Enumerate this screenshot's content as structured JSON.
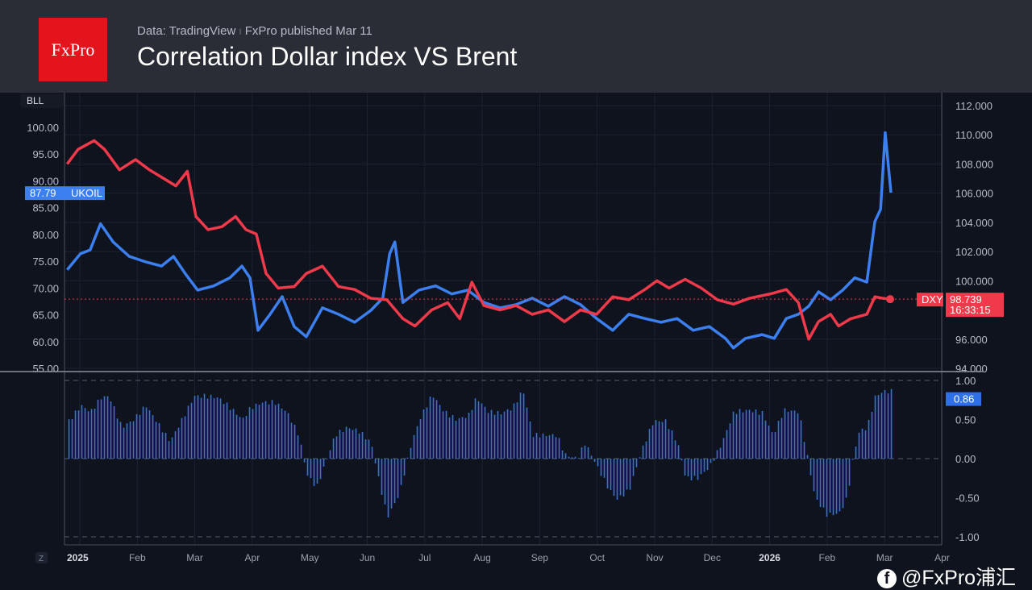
{
  "header": {
    "logo": "FxPro",
    "source": "Data: TradingView",
    "sep": "I",
    "published": "FxPro published Mar 11",
    "title": "Correlation Dollar index VS Brent"
  },
  "watermark": "@FxPro浦汇",
  "chart_data": {
    "type": "line",
    "title": "Correlation Dollar index VS Brent",
    "x_unit": "months since Jan 1 2025",
    "x_ticks": [
      "2025",
      "Feb",
      "Mar",
      "Apr",
      "May",
      "Jun",
      "Jul",
      "Aug",
      "Sep",
      "Oct",
      "Nov",
      "Dec",
      "2026",
      "Feb",
      "Mar",
      "Apr"
    ],
    "left_axis": {
      "label": "BLL",
      "ticks": [
        "100.00",
        "95.00",
        "90.00",
        "85.00",
        "80.00",
        "75.00",
        "70.00",
        "65.00",
        "60.00",
        "55.00"
      ],
      "range": [
        55,
        100
      ]
    },
    "right_axis": {
      "ticks": [
        "112.000",
        "110.000",
        "108.000",
        "106.000",
        "104.000",
        "102.000",
        "100.000",
        "96.000",
        "94.000"
      ],
      "range": [
        94,
        112
      ]
    },
    "series": [
      {
        "name": "UKOIL",
        "axis": "left",
        "color": "#3b7ff0",
        "last_label": "87.79",
        "points": [
          [
            -0.22,
            73.4
          ],
          [
            0.01,
            76.4
          ],
          [
            0.18,
            77.1
          ],
          [
            0.36,
            82.0
          ],
          [
            0.58,
            78.6
          ],
          [
            0.86,
            75.9
          ],
          [
            1.14,
            74.9
          ],
          [
            1.42,
            74.1
          ],
          [
            1.63,
            75.9
          ],
          [
            1.84,
            72.6
          ],
          [
            2.05,
            69.6
          ],
          [
            2.33,
            70.4
          ],
          [
            2.61,
            71.9
          ],
          [
            2.82,
            74.1
          ],
          [
            2.96,
            71.9
          ],
          [
            3.1,
            62.1
          ],
          [
            3.31,
            65.1
          ],
          [
            3.52,
            68.4
          ],
          [
            3.73,
            62.8
          ],
          [
            3.94,
            60.9
          ],
          [
            4.22,
            66.3
          ],
          [
            4.5,
            65.1
          ],
          [
            4.78,
            63.6
          ],
          [
            5.06,
            65.8
          ],
          [
            5.27,
            68.1
          ],
          [
            5.39,
            76.4
          ],
          [
            5.48,
            78.6
          ],
          [
            5.62,
            67.3
          ],
          [
            5.9,
            69.6
          ],
          [
            6.19,
            70.4
          ],
          [
            6.47,
            68.9
          ],
          [
            6.75,
            69.6
          ],
          [
            7.03,
            67.3
          ],
          [
            7.31,
            66.3
          ],
          [
            7.59,
            66.9
          ],
          [
            7.87,
            68.1
          ],
          [
            8.15,
            66.6
          ],
          [
            8.43,
            68.4
          ],
          [
            8.71,
            66.9
          ],
          [
            8.99,
            64.3
          ],
          [
            9.27,
            62.1
          ],
          [
            9.55,
            65.1
          ],
          [
            9.83,
            64.3
          ],
          [
            10.11,
            63.6
          ],
          [
            10.39,
            64.3
          ],
          [
            10.67,
            62.1
          ],
          [
            10.95,
            62.8
          ],
          [
            11.23,
            60.6
          ],
          [
            11.37,
            58.8
          ],
          [
            11.58,
            60.6
          ],
          [
            11.87,
            61.3
          ],
          [
            12.08,
            60.6
          ],
          [
            12.29,
            64.3
          ],
          [
            12.5,
            65.1
          ],
          [
            12.68,
            66.6
          ],
          [
            12.85,
            69.3
          ],
          [
            13.06,
            67.8
          ],
          [
            13.27,
            69.6
          ],
          [
            13.48,
            71.9
          ],
          [
            13.69,
            71.1
          ],
          [
            13.83,
            82.4
          ],
          [
            13.93,
            84.7
          ],
          [
            14.01,
            99.0
          ],
          [
            14.11,
            87.8
          ]
        ]
      },
      {
        "name": "DXY",
        "axis": "right",
        "color": "#f0394a",
        "last_label": "98.739",
        "last_time": "16:33:15",
        "points": [
          [
            -0.22,
            108.0
          ],
          [
            -0.03,
            109.0
          ],
          [
            0.25,
            109.6
          ],
          [
            0.43,
            109.0
          ],
          [
            0.69,
            107.6
          ],
          [
            0.97,
            108.3
          ],
          [
            1.21,
            107.6
          ],
          [
            1.42,
            107.1
          ],
          [
            1.67,
            106.5
          ],
          [
            1.87,
            107.5
          ],
          [
            2.02,
            104.4
          ],
          [
            2.23,
            103.5
          ],
          [
            2.47,
            103.7
          ],
          [
            2.71,
            104.4
          ],
          [
            2.89,
            103.5
          ],
          [
            3.07,
            103.2
          ],
          [
            3.24,
            100.5
          ],
          [
            3.45,
            99.5
          ],
          [
            3.73,
            99.6
          ],
          [
            3.94,
            100.5
          ],
          [
            4.22,
            101.0
          ],
          [
            4.5,
            99.6
          ],
          [
            4.78,
            99.4
          ],
          [
            5.06,
            98.8
          ],
          [
            5.34,
            98.7
          ],
          [
            5.62,
            97.4
          ],
          [
            5.83,
            96.9
          ],
          [
            6.12,
            98.0
          ],
          [
            6.4,
            98.5
          ],
          [
            6.61,
            97.4
          ],
          [
            6.82,
            99.9
          ],
          [
            7.03,
            98.3
          ],
          [
            7.31,
            98.0
          ],
          [
            7.59,
            98.3
          ],
          [
            7.87,
            97.7
          ],
          [
            8.15,
            98.0
          ],
          [
            8.43,
            97.2
          ],
          [
            8.71,
            98.0
          ],
          [
            8.99,
            97.7
          ],
          [
            9.27,
            98.9
          ],
          [
            9.55,
            98.7
          ],
          [
            9.83,
            99.4
          ],
          [
            10.04,
            100.0
          ],
          [
            10.25,
            99.5
          ],
          [
            10.53,
            100.1
          ],
          [
            10.81,
            99.5
          ],
          [
            11.09,
            98.7
          ],
          [
            11.37,
            98.4
          ],
          [
            11.65,
            98.8
          ],
          [
            12.01,
            99.1
          ],
          [
            12.29,
            99.4
          ],
          [
            12.5,
            98.5
          ],
          [
            12.68,
            96.0
          ],
          [
            12.85,
            97.2
          ],
          [
            13.06,
            97.7
          ],
          [
            13.2,
            96.9
          ],
          [
            13.41,
            97.4
          ],
          [
            13.69,
            97.7
          ],
          [
            13.83,
            98.9
          ],
          [
            13.97,
            98.8
          ],
          [
            14.11,
            98.739
          ]
        ]
      }
    ],
    "correlation": {
      "type": "bar",
      "color": "#3b6fe0",
      "last_label": "0.86",
      "ticks": [
        "1.00",
        "0.50",
        "0.00",
        "-0.50",
        "-1.00"
      ],
      "range": [
        -1,
        1
      ],
      "points": [
        [
          -0.2,
          0.48
        ],
        [
          0.01,
          0.68
        ],
        [
          0.18,
          0.6
        ],
        [
          0.36,
          0.78
        ],
        [
          0.5,
          0.8
        ],
        [
          0.72,
          0.4
        ],
        [
          0.93,
          0.5
        ],
        [
          1.14,
          0.68
        ],
        [
          1.35,
          0.45
        ],
        [
          1.56,
          0.22
        ],
        [
          1.77,
          0.5
        ],
        [
          1.98,
          0.8
        ],
        [
          2.19,
          0.8
        ],
        [
          2.4,
          0.78
        ],
        [
          2.61,
          0.65
        ],
        [
          2.82,
          0.5
        ],
        [
          2.96,
          0.65
        ],
        [
          3.17,
          0.72
        ],
        [
          3.38,
          0.72
        ],
        [
          3.59,
          0.6
        ],
        [
          3.8,
          0.3
        ],
        [
          3.94,
          -0.2
        ],
        [
          4.11,
          -0.37
        ],
        [
          4.29,
          0
        ],
        [
          4.43,
          0.3
        ],
        [
          4.64,
          0.4
        ],
        [
          4.85,
          0.35
        ],
        [
          5.06,
          0.2
        ],
        [
          5.2,
          -0.3
        ],
        [
          5.34,
          -0.75
        ],
        [
          5.55,
          -0.45
        ],
        [
          5.76,
          0.2
        ],
        [
          5.9,
          0.5
        ],
        [
          6.12,
          0.82
        ],
        [
          6.33,
          0.6
        ],
        [
          6.54,
          0.5
        ],
        [
          6.75,
          0.55
        ],
        [
          6.89,
          0.78
        ],
        [
          7.1,
          0.6
        ],
        [
          7.31,
          0.58
        ],
        [
          7.52,
          0.65
        ],
        [
          7.7,
          0.88
        ],
        [
          7.87,
          0.3
        ],
        [
          8.08,
          0.3
        ],
        [
          8.29,
          0.3
        ],
        [
          8.43,
          0.05
        ],
        [
          8.64,
          0
        ],
        [
          8.78,
          0.2
        ],
        [
          8.99,
          -0.1
        ],
        [
          9.2,
          -0.4
        ],
        [
          9.34,
          -0.52
        ],
        [
          9.55,
          -0.4
        ],
        [
          9.76,
          0.1
        ],
        [
          9.97,
          0.48
        ],
        [
          10.18,
          0.48
        ],
        [
          10.39,
          0.2
        ],
        [
          10.53,
          -0.25
        ],
        [
          10.74,
          -0.25
        ],
        [
          10.95,
          -0.1
        ],
        [
          11.16,
          0.2
        ],
        [
          11.37,
          0.6
        ],
        [
          11.65,
          0.62
        ],
        [
          11.87,
          0.58
        ],
        [
          12.05,
          0.3
        ],
        [
          12.24,
          0.62
        ],
        [
          12.5,
          0.6
        ],
        [
          12.64,
          0.05
        ],
        [
          12.78,
          -0.5
        ],
        [
          12.99,
          -0.72
        ],
        [
          13.2,
          -0.7
        ],
        [
          13.34,
          -0.5
        ],
        [
          13.45,
          0.05
        ],
        [
          13.55,
          0.35
        ],
        [
          13.69,
          0.4
        ],
        [
          13.83,
          0.8
        ],
        [
          13.97,
          0.86
        ],
        [
          14.11,
          0.86
        ]
      ]
    }
  }
}
